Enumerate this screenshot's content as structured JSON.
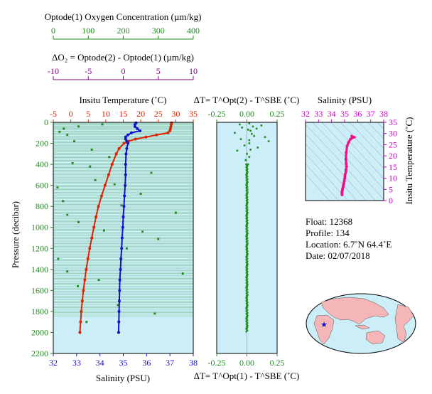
{
  "colors": {
    "oxygen": "#228B22",
    "delta_o2": "#800080",
    "temperature": "#DD2200",
    "salinity": "#1010CC",
    "panel_bg": "#CCEEF8",
    "pressure": "#228B22",
    "delta_t": "#228B22",
    "ts_salinity": "#CC00CC",
    "ts_curve": "#EE1188"
  },
  "labels": {
    "oxygen_axis": "Optode(1) Oxygen Concentration  (µm/kg)",
    "delta_o2_axis": "ΔO₂ = Optode(2) - Optode(1)   (µm/kg)",
    "temperature_axis": "Insitu Temperature (˚C)",
    "salinity_axis": "Salinity (PSU)",
    "pressure_axis": "Pressure (decibar)",
    "delta_t_top_axis": "ΔT= T^Opt(2) - T^SBE (˚C)",
    "delta_t_bottom_axis": "ΔT= T^Opt(1) - T^SBE (˚C)",
    "ts_salinity_axis": "Salinity (PSU)",
    "ts_temperature_axis": "Insitu Temperature (˚C)"
  },
  "info": {
    "float": "Float:  12368",
    "profile": "Profile:  134",
    "location": "Location:  6.7˚N  64.4˚E",
    "date": "Date:  02/07/2018"
  },
  "chart_data": [
    {
      "type": "line",
      "name": "profile",
      "y_axis": {
        "label": "Pressure (decibar)",
        "range": [
          0,
          2200
        ],
        "inverted": true,
        "ticks": [
          0,
          200,
          400,
          600,
          800,
          1000,
          1200,
          1400,
          1600,
          1800,
          2000,
          2200
        ]
      },
      "axes": {
        "temperature": {
          "range": [
            -5,
            35
          ],
          "ticks": [
            -5,
            0,
            5,
            10,
            15,
            20,
            25,
            30,
            35
          ]
        },
        "salinity": {
          "range": [
            32,
            38
          ],
          "ticks": [
            32,
            33,
            34,
            35,
            36,
            37,
            38
          ]
        },
        "oxygen": {
          "range": [
            0,
            400
          ],
          "ticks": [
            0,
            100,
            200,
            300,
            400
          ]
        },
        "delta_o2": {
          "range": [
            -10,
            10
          ],
          "ticks": [
            -10,
            -5,
            0,
            5,
            10
          ]
        }
      },
      "temperature": {
        "pressure": [
          5,
          20,
          40,
          60,
          80,
          100,
          120,
          140,
          160,
          180,
          200,
          250,
          300,
          400,
          500,
          600,
          700,
          800,
          900,
          1000,
          1100,
          1200,
          1300,
          1400,
          1500,
          1600,
          1700,
          1800,
          1900,
          2000
        ],
        "values": [
          28.8,
          28.7,
          28.6,
          28.5,
          28.3,
          27.8,
          24.5,
          21.5,
          18.5,
          16.5,
          15.2,
          13.8,
          13.0,
          11.8,
          10.8,
          9.8,
          8.8,
          7.9,
          7.2,
          6.6,
          6.0,
          5.4,
          4.9,
          4.4,
          4.0,
          3.6,
          3.3,
          3.0,
          2.8,
          2.6
        ]
      },
      "salinity": {
        "pressure": [
          5,
          20,
          40,
          60,
          80,
          100,
          120,
          140,
          160,
          180,
          200,
          250,
          300,
          400,
          500,
          600,
          700,
          800,
          900,
          1000,
          1100,
          1200,
          1300,
          1400,
          1500,
          1600,
          1700,
          1800,
          1900,
          2000
        ],
        "values": [
          35.55,
          35.5,
          35.5,
          35.6,
          35.72,
          35.35,
          35.2,
          35.1,
          35.1,
          35.15,
          35.2,
          35.15,
          35.12,
          35.1,
          35.1,
          35.08,
          35.05,
          35.03,
          35.0,
          34.98,
          34.95,
          34.93,
          34.9,
          34.88,
          34.85,
          34.84,
          34.83,
          34.82,
          34.81,
          34.8
        ]
      },
      "oxygen_points": [
        {
          "p": 20,
          "o2": 140
        },
        {
          "p": 40,
          "o2": 72
        },
        {
          "p": 60,
          "o2": 30
        },
        {
          "p": 90,
          "o2": 18
        },
        {
          "p": 120,
          "o2": 40
        },
        {
          "p": 180,
          "o2": 60
        },
        {
          "p": 260,
          "o2": 110
        },
        {
          "p": 330,
          "o2": 160
        },
        {
          "p": 390,
          "o2": 55
        },
        {
          "p": 420,
          "o2": 105
        },
        {
          "p": 480,
          "o2": 280
        },
        {
          "p": 550,
          "o2": 120
        },
        {
          "p": 590,
          "o2": 175
        },
        {
          "p": 620,
          "o2": 12
        },
        {
          "p": 680,
          "o2": 250
        },
        {
          "p": 750,
          "o2": 28
        },
        {
          "p": 790,
          "o2": 195
        },
        {
          "p": 860,
          "o2": 350
        },
        {
          "p": 880,
          "o2": 40
        },
        {
          "p": 950,
          "o2": 72
        },
        {
          "p": 1030,
          "o2": 145
        },
        {
          "p": 1040,
          "o2": 255
        },
        {
          "p": 1110,
          "o2": 300
        },
        {
          "p": 1200,
          "o2": 210
        },
        {
          "p": 1300,
          "o2": 14
        },
        {
          "p": 1420,
          "o2": 40
        },
        {
          "p": 1440,
          "o2": 370
        },
        {
          "p": 1500,
          "o2": 130
        },
        {
          "p": 1560,
          "o2": 70
        },
        {
          "p": 1740,
          "o2": 185
        },
        {
          "p": 1820,
          "o2": 290
        },
        {
          "p": 1900,
          "o2": 95
        }
      ]
    },
    {
      "type": "scatter",
      "name": "delta_t",
      "x_axis": {
        "range": [
          -0.25,
          0.25
        ],
        "ticks": [
          -0.25,
          0.0,
          0.25
        ]
      },
      "y_axis": {
        "range": [
          0,
          2200
        ],
        "inverted": true
      },
      "points_upper": [
        [
          0.02,
          10
        ],
        [
          -0.06,
          20
        ],
        [
          0.12,
          30
        ],
        [
          0.05,
          40
        ],
        [
          -0.04,
          50
        ],
        [
          0.08,
          60
        ],
        [
          0.01,
          70
        ],
        [
          0.03,
          80
        ],
        [
          -0.1,
          100
        ],
        [
          0.04,
          110
        ],
        [
          0.06,
          130
        ],
        [
          0.15,
          140
        ],
        [
          -0.05,
          160
        ],
        [
          0.02,
          170
        ],
        [
          0.18,
          180
        ],
        [
          0.02,
          200
        ],
        [
          -0.02,
          220
        ],
        [
          0.09,
          240
        ],
        [
          0.03,
          260
        ],
        [
          -0.08,
          270
        ],
        [
          0.0,
          300
        ],
        [
          0.02,
          330
        ],
        [
          -0.01,
          360
        ],
        [
          0.01,
          400
        ]
      ],
      "trace_count": 180
    },
    {
      "type": "scatter",
      "name": "ts_diagram",
      "x_axis": {
        "label": "Salinity (PSU)",
        "range": [
          32,
          38
        ],
        "ticks": [
          32,
          33,
          34,
          35,
          36,
          37,
          38
        ]
      },
      "y_axis": {
        "label": "Insitu Temperature (˚C)",
        "range": [
          0,
          35
        ],
        "ticks": [
          0,
          5,
          10,
          15,
          20,
          25,
          30,
          35
        ]
      },
      "points": [
        [
          35.55,
          28.8
        ],
        [
          35.6,
          28.5
        ],
        [
          35.72,
          28.3
        ],
        [
          35.45,
          27.5
        ],
        [
          35.3,
          26.0
        ],
        [
          35.2,
          24.5
        ],
        [
          35.12,
          21.5
        ],
        [
          35.1,
          18.5
        ],
        [
          35.12,
          16.5
        ],
        [
          35.15,
          15.2
        ],
        [
          35.1,
          13.8
        ],
        [
          35.1,
          13.0
        ],
        [
          35.05,
          11.8
        ],
        [
          35.03,
          10.8
        ],
        [
          35.0,
          9.8
        ],
        [
          34.98,
          8.8
        ],
        [
          34.95,
          7.9
        ],
        [
          34.93,
          7.2
        ],
        [
          34.9,
          6.6
        ],
        [
          34.88,
          6.0
        ],
        [
          34.85,
          5.4
        ],
        [
          34.84,
          4.9
        ],
        [
          34.82,
          4.4
        ],
        [
          34.81,
          4.0
        ],
        [
          34.8,
          3.6
        ],
        [
          34.8,
          3.0
        ],
        [
          34.8,
          2.6
        ]
      ]
    }
  ]
}
